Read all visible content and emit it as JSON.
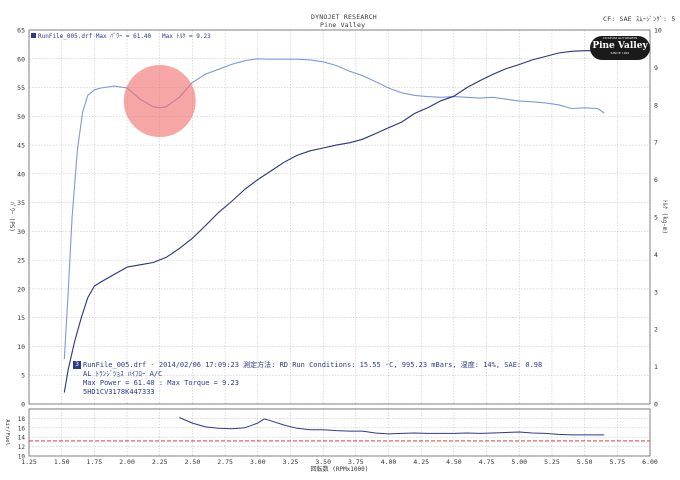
{
  "header": {
    "company": "DYNOJET  RESEARCH",
    "shop": "Pine Valley",
    "cf": "CF: SAE  ｽﾑｰｼﾞﾝｸﾞ: 5"
  },
  "legend": {
    "file": "RunFile_005.drf",
    "power_label": "Max ﾊﾟﾜｰ = 61.40",
    "torque_label": "Max ﾄﾙｸ = 9.23"
  },
  "logo": {
    "text": "Pine Valley",
    "small_top": "CUSTOM AUTOPARTS",
    "small_bottom": "SINCE 1991"
  },
  "info": {
    "index": "3",
    "line1": "RunFile_005.drf - 2014/02/06 17:09:23  測定方法: RD  Run Conditions: 15.55 -C, 995.23 mBars,  湿度: 14%, SAE: 0.98",
    "line2": "AL ﾄﾗﾝｼﾞﾂｮｽ ﾊｲﾌﾛｰ A/C",
    "line3": "Max Power = 61.40 : Max Torque = 9.23",
    "line4": "5HD1CV3178K447333"
  },
  "colors": {
    "power": "#7d9ad6",
    "torque": "#27357a",
    "afr": "#2b3a8a",
    "afr_target": "#cc2222",
    "grid": "#a8a8a8",
    "highlight": "#f26b6b"
  },
  "chart_data": [
    {
      "type": "line",
      "title": "",
      "xlabel": "回転数 (RPMx1000)",
      "ylabel_left": "ﾊﾟﾜｰ (PS)",
      "ylabel_right": "ﾄﾙｸ (kg-m)",
      "xlim": [
        1.25,
        6.0
      ],
      "x_ticks": [
        "1.25",
        "1.50",
        "1.75",
        "2.00",
        "2.25",
        "2.50",
        "2.75",
        "3.00",
        "3.25",
        "3.50",
        "3.75",
        "4.00",
        "4.25",
        "4.50",
        "4.75",
        "5.00",
        "5.25",
        "5.50",
        "5.75",
        "6.00"
      ],
      "ylim_left": [
        0,
        65
      ],
      "y_ticks_left": [
        "0",
        "5",
        "10",
        "15",
        "20",
        "25",
        "30",
        "35",
        "40",
        "45",
        "50",
        "55",
        "60",
        "65"
      ],
      "ylim_right": [
        0,
        10
      ],
      "y_ticks_right": [
        "0",
        "1",
        "2",
        "3",
        "4",
        "5",
        "6",
        "7",
        "8",
        "9",
        "10"
      ],
      "grid": true,
      "series": [
        {
          "name": "ﾊﾟﾜｰ",
          "axis": "right",
          "x": [
            1.52,
            1.55,
            1.58,
            1.62,
            1.66,
            1.7,
            1.75,
            1.8,
            1.9,
            2.0,
            2.1,
            2.2,
            2.25,
            2.3,
            2.4,
            2.5,
            2.6,
            2.7,
            2.8,
            2.9,
            3.0,
            3.1,
            3.2,
            3.3,
            3.4,
            3.5,
            3.6,
            3.7,
            3.8,
            3.9,
            4.0,
            4.1,
            4.2,
            4.3,
            4.4,
            4.5,
            4.6,
            4.7,
            4.8,
            4.9,
            5.0,
            5.1,
            5.2,
            5.3,
            5.4,
            5.5,
            5.6,
            5.65
          ],
          "y": [
            1.2,
            3.0,
            5.0,
            6.8,
            7.8,
            8.25,
            8.4,
            8.45,
            8.5,
            8.45,
            8.15,
            7.95,
            7.92,
            7.95,
            8.2,
            8.6,
            8.82,
            8.95,
            9.08,
            9.18,
            9.23,
            9.22,
            9.22,
            9.22,
            9.2,
            9.15,
            9.05,
            8.9,
            8.78,
            8.62,
            8.45,
            8.32,
            8.25,
            8.22,
            8.2,
            8.22,
            8.2,
            8.18,
            8.2,
            8.15,
            8.1,
            8.08,
            8.05,
            8.0,
            7.9,
            7.92,
            7.9,
            7.78
          ]
        },
        {
          "name": "ﾄﾙｸ",
          "axis": "left",
          "x": [
            1.52,
            1.55,
            1.6,
            1.65,
            1.7,
            1.75,
            1.8,
            1.9,
            2.0,
            2.1,
            2.2,
            2.3,
            2.4,
            2.5,
            2.6,
            2.7,
            2.8,
            2.9,
            3.0,
            3.1,
            3.2,
            3.3,
            3.4,
            3.5,
            3.6,
            3.7,
            3.8,
            3.9,
            4.0,
            4.1,
            4.2,
            4.3,
            4.4,
            4.5,
            4.6,
            4.7,
            4.8,
            4.9,
            5.0,
            5.1,
            5.2,
            5.3,
            5.4,
            5.5,
            5.6,
            5.65
          ],
          "y": [
            2,
            6,
            11,
            15,
            18.5,
            20.5,
            21.2,
            22.5,
            23.8,
            24.2,
            24.6,
            25.5,
            27,
            28.8,
            31,
            33.3,
            35.2,
            37.3,
            39,
            40.5,
            42,
            43.2,
            44,
            44.5,
            45,
            45.4,
            46,
            47,
            48,
            49,
            50.5,
            51.5,
            52.7,
            53.5,
            55,
            56.2,
            57.3,
            58.3,
            59,
            59.8,
            60.4,
            61,
            61.3,
            61.4,
            61.4,
            61.4
          ]
        }
      ]
    },
    {
      "type": "line",
      "ylabel": "Air/Fuel",
      "xlim": [
        1.25,
        6.0
      ],
      "ylim": [
        10,
        20
      ],
      "y_ticks": [
        "10",
        "12",
        "14",
        "16",
        "18"
      ],
      "target": 13.2,
      "series": [
        {
          "name": "Air/Fuel",
          "x": [
            2.4,
            2.5,
            2.6,
            2.7,
            2.8,
            2.9,
            3.0,
            3.05,
            3.1,
            3.2,
            3.3,
            3.4,
            3.5,
            3.6,
            3.7,
            3.8,
            3.9,
            4.0,
            4.1,
            4.2,
            4.3,
            4.4,
            4.5,
            4.6,
            4.7,
            4.8,
            4.9,
            5.0,
            5.1,
            5.2,
            5.3,
            5.4,
            5.5,
            5.6,
            5.65
          ],
          "y": [
            18.2,
            17.0,
            16.2,
            15.9,
            15.8,
            16.0,
            17.0,
            17.9,
            17.5,
            16.6,
            15.9,
            15.6,
            15.6,
            15.4,
            15.3,
            15.3,
            14.9,
            14.7,
            14.8,
            14.9,
            14.8,
            14.8,
            14.8,
            14.9,
            14.8,
            14.9,
            15.0,
            15.1,
            14.9,
            14.8,
            14.6,
            14.5,
            14.5,
            14.5,
            14.5
          ]
        }
      ]
    }
  ]
}
